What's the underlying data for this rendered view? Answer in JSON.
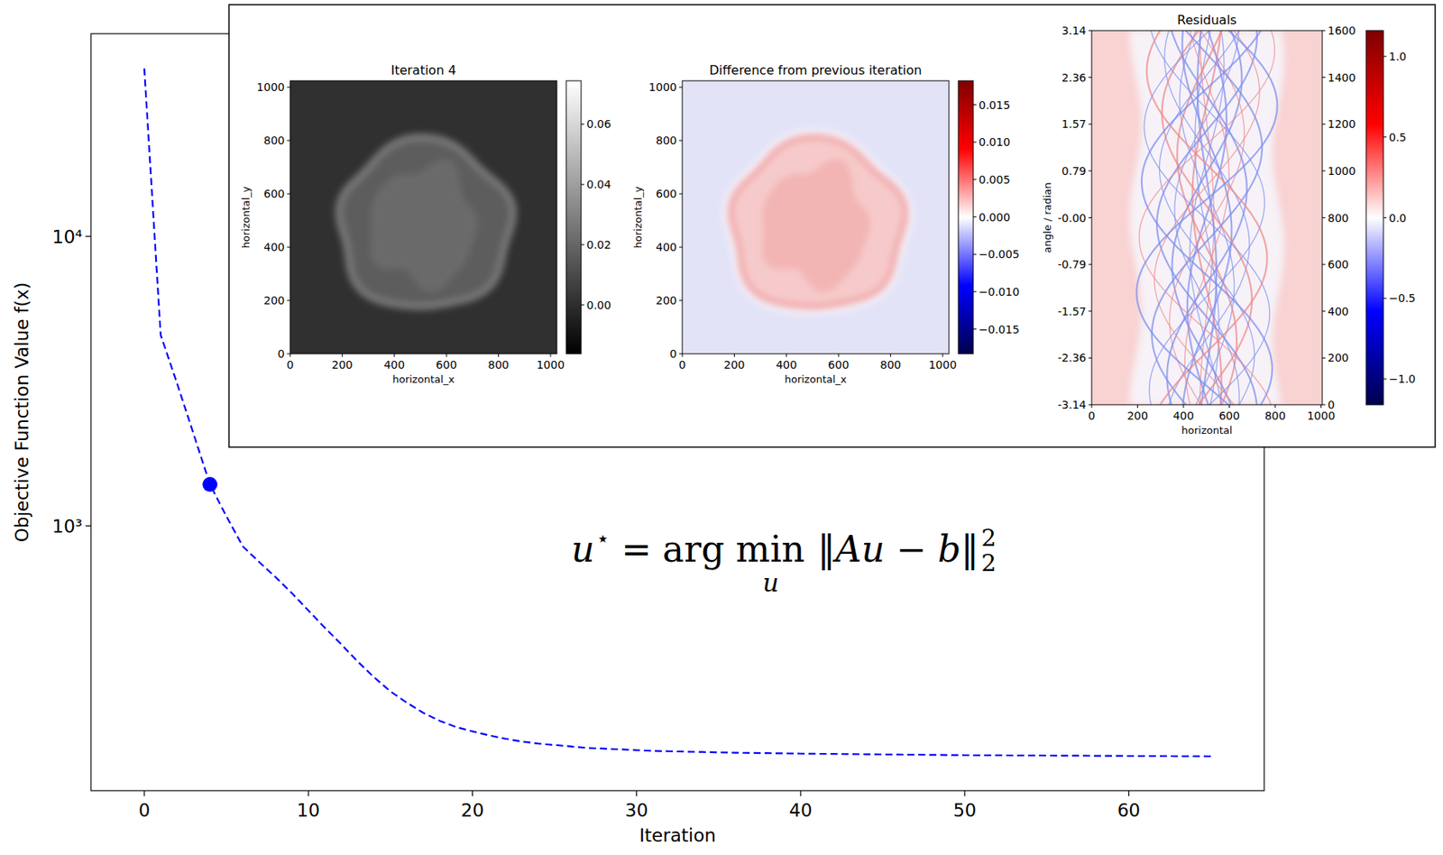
{
  "chart_data": [
    {
      "type": "line",
      "x_label": "Iteration",
      "y_label": "Objective Function Value f(x)",
      "log": "y",
      "xlim": [
        -3.25,
        68.25
      ],
      "ylim": [
        121.7,
        50100
      ],
      "xticks": [
        0,
        10,
        20,
        30,
        40,
        50,
        60
      ],
      "yticks": [
        {
          "value": 1000,
          "label": "10³"
        },
        {
          "value": 10000,
          "label": "10⁴"
        }
      ],
      "x": [
        0,
        1,
        2,
        3,
        4,
        5,
        6,
        7,
        8,
        9,
        10,
        11,
        12,
        13,
        14,
        15,
        16,
        17,
        18,
        19,
        20,
        21,
        22,
        23,
        24,
        25,
        26,
        27,
        28,
        29,
        30,
        31,
        32,
        33,
        34,
        35,
        36,
        37,
        38,
        39,
        40,
        41,
        42,
        43,
        44,
        45,
        46,
        47,
        48,
        49,
        50,
        51,
        52,
        53,
        54,
        55,
        56,
        57,
        58,
        59,
        60,
        61,
        62,
        63,
        64,
        65
      ],
      "values": [
        38000,
        4560,
        3100,
        2080,
        1390,
        1080,
        850,
        750,
        665,
        585,
        510,
        445,
        390,
        340,
        300,
        268,
        245,
        226,
        212,
        202,
        195,
        189,
        184,
        180,
        177,
        175,
        173,
        171,
        170,
        169,
        168,
        167,
        166.5,
        166,
        165.5,
        165,
        164.6,
        164.3,
        164,
        163.7,
        163.4,
        163.2,
        163,
        162.8,
        162.6,
        162.4,
        162.2,
        162,
        161.8,
        161.6,
        161.4,
        161.3,
        161.2,
        161.1,
        161,
        160.9,
        160.8,
        160.7,
        160.6,
        160.5,
        160.4,
        160.3,
        160.2,
        160.1,
        160,
        159.9
      ],
      "color": "#0000ff",
      "line_style": "dashed",
      "marker": "circle",
      "highlight_x": 4,
      "annotation": {
        "lhs": "u",
        "lhs_superscript": "⋆",
        "relation": "=",
        "operator": "arg min",
        "operator_subscript": "u",
        "expression": "‖Au − b‖",
        "expression_subscript": "2",
        "expression_superscript": "2"
      }
    },
    {
      "type": "image",
      "title": "Iteration 4",
      "x_label": "horizontal_x",
      "y_label": "horizontal_y",
      "xlim": [
        0,
        1024
      ],
      "ylim": [
        0,
        1024
      ],
      "xticks": [
        0,
        200,
        400,
        600,
        800,
        1000
      ],
      "yticks": [
        0,
        200,
        400,
        600,
        800,
        1000
      ],
      "colorbar": {
        "range": [
          -0.0162,
          0.0744
        ],
        "color": "gray",
        "ticks": [
          {
            "value": 0,
            "label": "0.00"
          },
          {
            "value": 0.02,
            "label": "0.02"
          },
          {
            "value": 0.04,
            "label": "0.04"
          },
          {
            "value": 0.06,
            "label": "0.06"
          }
        ]
      }
    },
    {
      "type": "image",
      "title": "Difference from previous iteration",
      "x_label": "horizontal_x",
      "y_label": "horizontal_y",
      "xlim": [
        0,
        1024
      ],
      "ylim": [
        0,
        1024
      ],
      "xticks": [
        0,
        200,
        400,
        600,
        800,
        1000
      ],
      "yticks": [
        0,
        200,
        400,
        600,
        800,
        1000
      ],
      "colorbar": {
        "range": [
          -0.0183,
          0.0182
        ],
        "color": "seismic",
        "ticks": [
          {
            "value": -0.015,
            "label": "−0.015"
          },
          {
            "value": -0.01,
            "label": "−0.010"
          },
          {
            "value": -0.005,
            "label": "−0.005"
          },
          {
            "value": 0,
            "label": "0.000"
          },
          {
            "value": 0.005,
            "label": "0.005"
          },
          {
            "value": 0.01,
            "label": "0.010"
          },
          {
            "value": 0.015,
            "label": "0.015"
          }
        ]
      }
    },
    {
      "type": "image",
      "title": "Residuals",
      "x_label": "horizontal",
      "y_label": "angle / radian",
      "xlim": [
        0,
        1005
      ],
      "ylim": [
        -3.1416,
        3.1416
      ],
      "xticks": [
        0,
        200,
        400,
        600,
        800,
        1000
      ],
      "yticks": [
        {
          "value": -3.1416,
          "label": "-3.14"
        },
        {
          "value": -2.3562,
          "label": "-2.36"
        },
        {
          "value": -1.5708,
          "label": "-1.57"
        },
        {
          "value": -0.7854,
          "label": "-0.79"
        },
        {
          "value": 0,
          "label": "-0.00"
        },
        {
          "value": 0.7854,
          "label": "0.79"
        },
        {
          "value": 1.5708,
          "label": "1.57"
        },
        {
          "value": 2.3562,
          "label": "2.36"
        },
        {
          "value": 3.1416,
          "label": "3.14"
        }
      ],
      "y2lim": [
        0,
        1600
      ],
      "y2ticks": [
        0,
        200,
        400,
        600,
        800,
        1000,
        1200,
        1400,
        1600
      ],
      "colorbar": {
        "range": [
          -1.16,
          1.16
        ],
        "color": "seismic",
        "ticks": [
          {
            "value": -1.0,
            "label": "−1.0"
          },
          {
            "value": -0.5,
            "label": "−0.5"
          },
          {
            "value": 0,
            "label": "0.0"
          },
          {
            "value": 0.5,
            "label": "0.5"
          },
          {
            "value": 1.0,
            "label": "1.0"
          }
        ]
      }
    }
  ]
}
